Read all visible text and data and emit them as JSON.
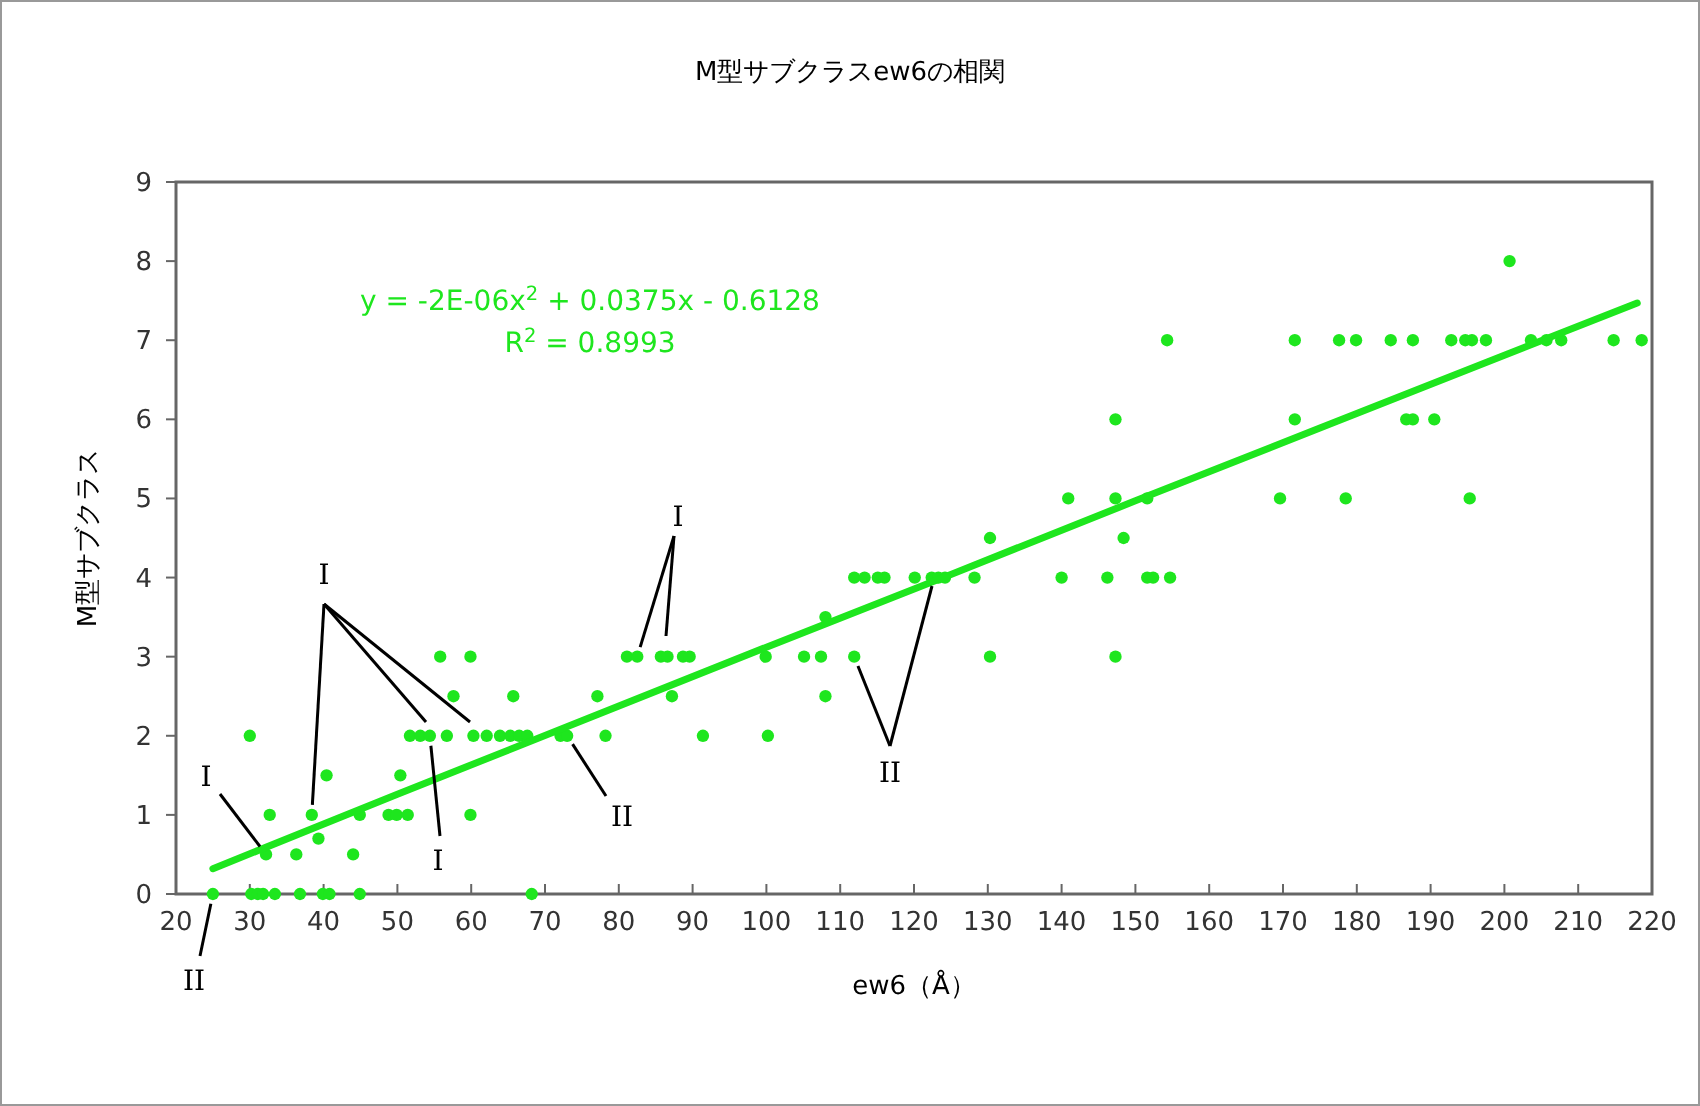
{
  "chart_data": {
    "type": "scatter",
    "title": "M型サブクラスew6の相関",
    "xlabel": "ew6（Å）",
    "ylabel": "M型サブクラス",
    "xlim": [
      20,
      220
    ],
    "xticks": [
      20,
      30,
      40,
      50,
      60,
      70,
      80,
      90,
      100,
      110,
      120,
      130,
      140,
      150,
      160,
      170,
      180,
      190,
      200,
      210,
      220
    ],
    "ylim": [
      0,
      9
    ],
    "yticks": [
      0,
      1,
      2,
      3,
      4,
      5,
      6,
      7,
      8,
      9
    ],
    "grid": false,
    "series": [
      {
        "type": "scatter",
        "marker": "circle",
        "color": "#1ee61e",
        "x": [
          25.0,
          30.2,
          31.1,
          31.8,
          33.4,
          36.8,
          39.9,
          40.8,
          44.9,
          68.2,
          32.2,
          36.3,
          44.0,
          39.3,
          32.7,
          38.4,
          44.9,
          48.8,
          49.9,
          51.4,
          59.9,
          40.4,
          50.4,
          30.0,
          51.7,
          53.1,
          54.4,
          56.7,
          60.3,
          62.1,
          63.9,
          65.3,
          66.5,
          67.6,
          72.1,
          73.0,
          78.2,
          91.4,
          100.2,
          57.6,
          65.7,
          77.1,
          87.2,
          108.0,
          55.8,
          59.9,
          81.1,
          82.5,
          85.7,
          86.6,
          88.7,
          89.6,
          99.9,
          105.1,
          107.4,
          111.9,
          130.3,
          147.3,
          108.0,
          111.9,
          113.3,
          115.1,
          116.0,
          120.1,
          122.4,
          123.3,
          124.2,
          128.2,
          140.0,
          146.2,
          151.6,
          152.4,
          154.7,
          130.3,
          148.4,
          140.9,
          147.3,
          151.6,
          169.6,
          178.5,
          195.3,
          147.3,
          171.6,
          186.7,
          187.6,
          190.5,
          154.3,
          171.6,
          177.6,
          179.9,
          184.6,
          187.6,
          192.8,
          194.7,
          195.6,
          197.5,
          203.6,
          205.7,
          207.7,
          214.8,
          218.6,
          200.7
        ],
        "values": [
          0,
          0,
          0,
          0,
          0,
          0,
          0,
          0,
          0,
          0,
          0.5,
          0.5,
          0.5,
          0.7,
          1,
          1,
          1,
          1,
          1,
          1,
          1,
          1.5,
          1.5,
          2,
          2,
          2,
          2,
          2,
          2,
          2,
          2,
          2,
          2,
          2,
          2,
          2,
          2,
          2,
          2,
          2.5,
          2.5,
          2.5,
          2.5,
          2.5,
          3,
          3,
          3,
          3,
          3,
          3,
          3,
          3,
          3,
          3,
          3,
          3,
          3,
          3,
          3.5,
          4,
          4,
          4,
          4,
          4,
          4,
          4,
          4,
          4,
          4,
          4,
          4,
          4,
          4,
          4.5,
          4.5,
          5,
          5,
          5,
          5,
          5,
          5,
          6,
          6,
          6,
          6,
          6,
          7,
          7,
          7,
          7,
          7,
          7,
          7,
          7,
          7,
          7,
          7,
          7,
          7,
          7,
          7,
          8
        ]
      },
      {
        "type": "line",
        "marker": "none",
        "color": "#1ee61e",
        "x": [
          25,
          50,
          75,
          100,
          125,
          150,
          175,
          200,
          218
        ],
        "values": [
          0.32,
          1.26,
          2.19,
          3.12,
          4.04,
          4.97,
          5.89,
          6.81,
          7.47
        ]
      }
    ],
    "annotations": [
      "y = -2E-06x$^{2}$ + 0.0375x - 0.6128",
      "R$^{2}$ = 0.8993",
      {
        "text": "I",
        "x": 32.2,
        "y": 0.5
      },
      {
        "text": "I",
        "x": 38.4,
        "y": 1
      },
      {
        "text": "I",
        "x": 54.4,
        "y": 2
      },
      {
        "text": "II",
        "x": 73.0,
        "y": 2
      },
      {
        "text": "II",
        "x": 25.0,
        "y": 0
      },
      {
        "text": "I",
        "x": 82.5,
        "y": 3
      },
      {
        "text": "II",
        "x": 111.9,
        "y": 3
      }
    ]
  }
}
